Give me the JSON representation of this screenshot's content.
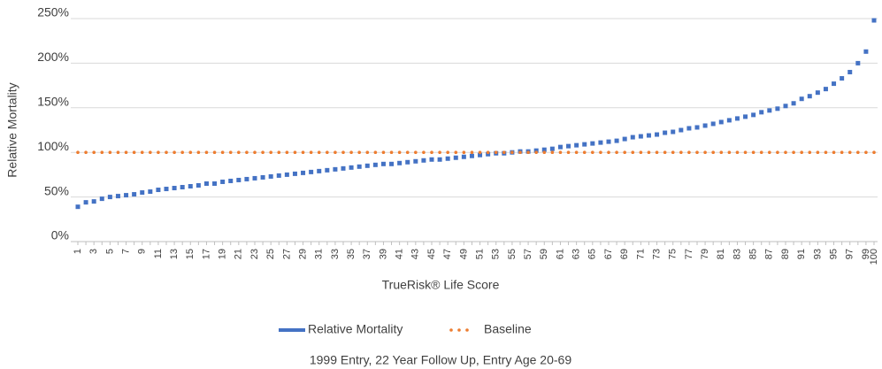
{
  "chart_data": {
    "type": "line",
    "x_label": "TrueRisk® Life Score",
    "y_label": "Relative Mortality",
    "footnote": "1999 Entry, 22 Year Follow Up, Entry Age 20-69",
    "categories": [
      "1",
      null,
      "3",
      null,
      "5",
      null,
      "7",
      null,
      "9",
      null,
      "11",
      null,
      "13",
      null,
      "15",
      null,
      "17",
      null,
      "19",
      null,
      "21",
      null,
      "23",
      null,
      "25",
      null,
      "27",
      null,
      "29",
      null,
      "31",
      null,
      "33",
      null,
      "35",
      null,
      "37",
      null,
      "39",
      null,
      "41",
      null,
      "43",
      null,
      "45",
      null,
      "47",
      null,
      "49",
      null,
      "51",
      null,
      "53",
      null,
      "55",
      null,
      "57",
      null,
      "59",
      null,
      "61",
      null,
      "63",
      null,
      "65",
      null,
      "67",
      null,
      "69",
      null,
      "71",
      null,
      "73",
      null,
      "75",
      null,
      "77",
      null,
      "79",
      null,
      "81",
      null,
      "83",
      null,
      "85",
      null,
      "87",
      null,
      "89",
      null,
      "91",
      null,
      "93",
      null,
      "95",
      null,
      "97",
      null,
      "99",
      "100"
    ],
    "series": [
      {
        "name": "Relative Mortality",
        "color": "#4472c4",
        "marker": "square",
        "values": [
          39,
          44,
          45,
          48,
          50,
          51,
          52,
          53,
          55,
          56,
          58,
          59,
          60,
          61,
          62,
          63,
          65,
          65,
          67,
          68,
          69,
          70,
          71,
          72,
          73,
          74,
          75,
          76,
          77,
          78,
          79,
          80,
          81,
          82,
          83,
          84,
          85,
          86,
          87,
          87,
          88,
          89,
          90,
          91,
          92,
          92,
          93,
          94,
          95,
          96,
          97,
          98,
          99,
          99,
          100,
          101,
          101,
          102,
          103,
          104,
          106,
          107,
          108,
          109,
          110,
          111,
          112,
          113,
          115,
          117,
          118,
          119,
          120,
          122,
          123,
          125,
          127,
          128,
          130,
          132,
          134,
          136,
          138,
          140,
          142,
          145,
          147,
          149,
          152,
          155,
          160,
          163,
          167,
          171,
          177,
          183,
          190,
          200,
          213,
          248
        ]
      },
      {
        "name": "Baseline",
        "color": "#ed7d31",
        "marker": "circle",
        "values": [
          100,
          100,
          100,
          100,
          100,
          100,
          100,
          100,
          100,
          100,
          100,
          100,
          100,
          100,
          100,
          100,
          100,
          100,
          100,
          100,
          100,
          100,
          100,
          100,
          100,
          100,
          100,
          100,
          100,
          100,
          100,
          100,
          100,
          100,
          100,
          100,
          100,
          100,
          100,
          100,
          100,
          100,
          100,
          100,
          100,
          100,
          100,
          100,
          100,
          100,
          100,
          100,
          100,
          100,
          100,
          100,
          100,
          100,
          100,
          100,
          100,
          100,
          100,
          100,
          100,
          100,
          100,
          100,
          100,
          100,
          100,
          100,
          100,
          100,
          100,
          100,
          100,
          100,
          100,
          100,
          100,
          100,
          100,
          100,
          100,
          100,
          100,
          100,
          100,
          100,
          100,
          100,
          100,
          100,
          100,
          100,
          100,
          100,
          100,
          100
        ]
      }
    ],
    "ylim": [
      0,
      250
    ],
    "yticks": [
      {
        "value": 0,
        "label": "0%"
      },
      {
        "value": 50,
        "label": "50%"
      },
      {
        "value": 100,
        "label": "100%"
      },
      {
        "value": 150,
        "label": "150%"
      },
      {
        "value": 200,
        "label": "200%"
      },
      {
        "value": 250,
        "label": "250%"
      }
    ],
    "grid": true,
    "legend": "bottom"
  }
}
